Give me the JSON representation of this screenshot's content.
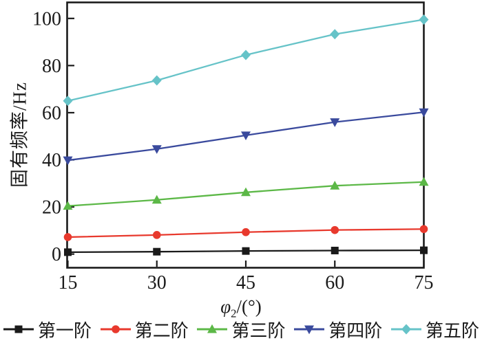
{
  "chart_data": {
    "type": "line",
    "x": [
      15,
      30,
      45,
      60,
      75
    ],
    "series": [
      {
        "id": "order-1",
        "name": "第一阶",
        "marker": "square",
        "color": "#1a1a1a",
        "values": [
          0.8,
          1.0,
          1.3,
          1.5,
          1.6
        ]
      },
      {
        "id": "order-2",
        "name": "第二阶",
        "marker": "circle",
        "color": "#e8392d",
        "values": [
          7.2,
          8.1,
          9.3,
          10.2,
          10.6
        ]
      },
      {
        "id": "order-3",
        "name": "第三阶",
        "marker": "triangle-up",
        "color": "#5cb847",
        "values": [
          20.4,
          23.0,
          26.2,
          29.0,
          30.6
        ]
      },
      {
        "id": "order-4",
        "name": "第四阶",
        "marker": "triangle-down",
        "color": "#3a4a9d",
        "values": [
          39.8,
          44.6,
          50.4,
          56.0,
          60.2
        ]
      },
      {
        "id": "order-5",
        "name": "第五阶",
        "marker": "diamond",
        "color": "#66c3c8",
        "values": [
          65.0,
          73.7,
          84.5,
          93.3,
          99.5
        ]
      }
    ],
    "xlabel": "φ2/(°)",
    "xlabel_parts": {
      "symbol": "φ",
      "subscript": "2",
      "suffix": "/(°)"
    },
    "ylabel": "固有频率/Hz",
    "xlim": [
      15,
      75
    ],
    "ylim": [
      -5.8,
      106.8
    ],
    "xticks": [
      15,
      30,
      45,
      60,
      75
    ],
    "yticks": [
      0,
      20,
      40,
      60,
      80,
      100
    ],
    "grid": false,
    "legend_position": "bottom",
    "background": "#ffffff",
    "axis_color": "#1a1a1a"
  }
}
